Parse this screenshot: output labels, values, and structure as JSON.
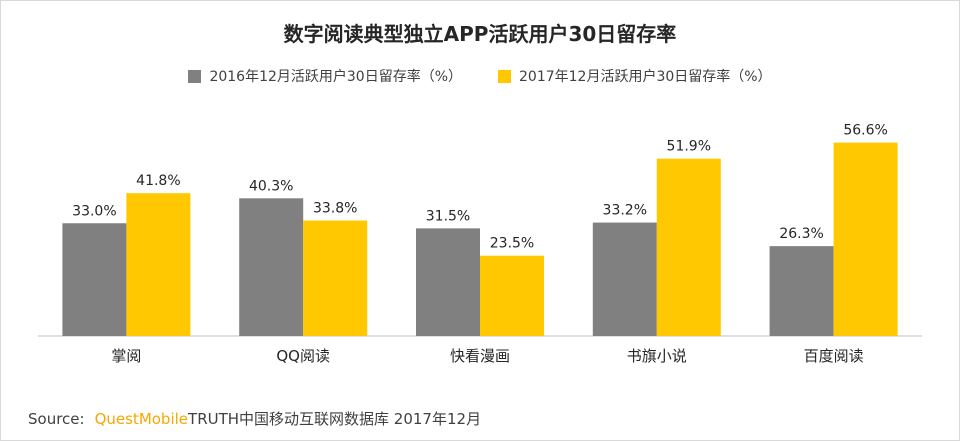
{
  "chart_data": {
    "type": "bar",
    "title": "数字阅读典型独立APP活跃用户30日留存率",
    "categories": [
      "掌阅",
      "QQ阅读",
      "快看漫画",
      "书旗小说",
      "百度阅读"
    ],
    "series": [
      {
        "name": "2016年12月活跃用户30日留存率（%）",
        "color": "#808080",
        "values": [
          33.0,
          40.3,
          31.5,
          33.2,
          26.3
        ],
        "labels": [
          "33.0%",
          "40.3%",
          "31.5%",
          "33.2%",
          "26.3%"
        ]
      },
      {
        "name": "2017年12月活跃用户30日留存率（%）",
        "color": "#ffc800",
        "values": [
          41.8,
          33.8,
          23.5,
          51.9,
          56.6
        ],
        "labels": [
          "41.8%",
          "33.8%",
          "23.5%",
          "51.9%",
          "56.6%"
        ]
      }
    ],
    "ylim": [
      0,
      60
    ],
    "grid": false,
    "legend_position": "top"
  },
  "source": {
    "label": "Source:",
    "brand": "QuestMobile",
    "text": "TRUTH中国移动互联网数据库 2017年12月"
  }
}
